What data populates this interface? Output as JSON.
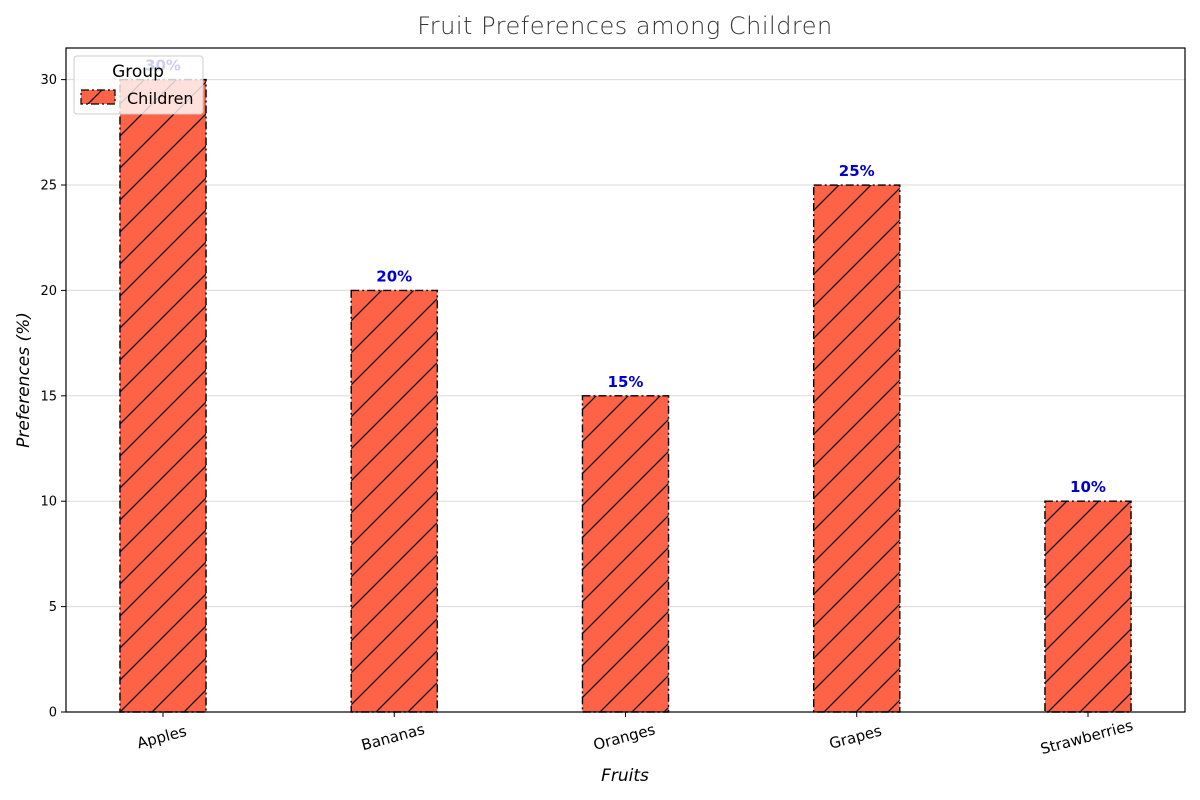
{
  "chart_data": {
    "type": "bar",
    "title": "Fruit Preferences among Children",
    "xlabel": "Fruits",
    "ylabel": "Preferences (%)",
    "categories": [
      "Apples",
      "Bananas",
      "Oranges",
      "Grapes",
      "Strawberries"
    ],
    "series": [
      {
        "name": "Children",
        "values": [
          30,
          20,
          15,
          25,
          10
        ],
        "data_labels": [
          "30%",
          "20%",
          "15%",
          "25%",
          "10%"
        ]
      }
    ],
    "ylim": [
      0,
      31.5
    ],
    "yticks": [
      0,
      5,
      10,
      15,
      20,
      25,
      30
    ],
    "grid": "y",
    "legend": {
      "title": "Group",
      "placement": "top-left"
    },
    "colors": {
      "bar_fill": "#ff6347",
      "bar_edge": "#000000",
      "hatch": "#000000",
      "data_label": "#0000cc",
      "grid": "#d9d9d9"
    },
    "bar_hatch": "forward-diagonal",
    "bar_edge_style": "dash-dot",
    "xtick_rotation_deg": -15
  }
}
